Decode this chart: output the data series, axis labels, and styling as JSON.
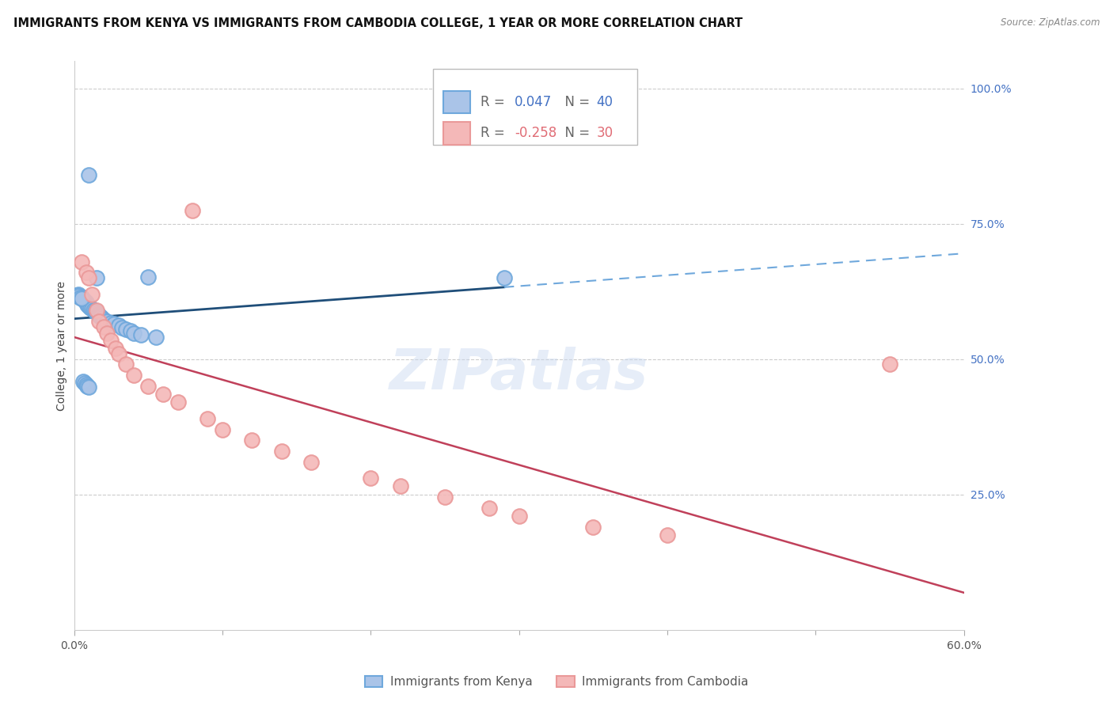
{
  "title": "IMMIGRANTS FROM KENYA VS IMMIGRANTS FROM CAMBODIA COLLEGE, 1 YEAR OR MORE CORRELATION CHART",
  "source": "Source: ZipAtlas.com",
  "ylabel": "College, 1 year or more",
  "right_yticks": [
    "100.0%",
    "75.0%",
    "50.0%",
    "25.0%"
  ],
  "right_ytick_values": [
    1.0,
    0.75,
    0.5,
    0.25
  ],
  "xlim": [
    0.0,
    0.6
  ],
  "ylim": [
    0.0,
    1.05
  ],
  "watermark": "ZIPatlas",
  "kenya_scatter_fill": "#aac4e8",
  "kenya_scatter_edge": "#6fa8dc",
  "cambodia_scatter_fill": "#f4b8b8",
  "cambodia_scatter_edge": "#ea9999",
  "kenya_R": "0.047",
  "kenya_N": "40",
  "cambodia_R": "-0.258",
  "cambodia_N": "30",
  "kenya_scatter_x": [
    0.003,
    0.005,
    0.006,
    0.007,
    0.008,
    0.009,
    0.01,
    0.01,
    0.011,
    0.012,
    0.013,
    0.014,
    0.015,
    0.015,
    0.016,
    0.017,
    0.018,
    0.019,
    0.02,
    0.022,
    0.025,
    0.027,
    0.03,
    0.032,
    0.035,
    0.038,
    0.04,
    0.045,
    0.05,
    0.055,
    0.002,
    0.003,
    0.004,
    0.005,
    0.006,
    0.007,
    0.29,
    0.008,
    0.009,
    0.01
  ],
  "kenya_scatter_y": [
    0.62,
    0.615,
    0.61,
    0.608,
    0.605,
    0.6,
    0.598,
    0.84,
    0.595,
    0.593,
    0.59,
    0.588,
    0.585,
    0.65,
    0.583,
    0.58,
    0.578,
    0.575,
    0.572,
    0.57,
    0.567,
    0.565,
    0.562,
    0.558,
    0.555,
    0.552,
    0.548,
    0.545,
    0.652,
    0.54,
    0.618,
    0.616,
    0.614,
    0.612,
    0.458,
    0.455,
    0.65,
    0.453,
    0.45,
    0.448
  ],
  "cambodia_scatter_x": [
    0.005,
    0.008,
    0.01,
    0.012,
    0.015,
    0.017,
    0.02,
    0.022,
    0.025,
    0.028,
    0.03,
    0.035,
    0.04,
    0.05,
    0.06,
    0.07,
    0.08,
    0.09,
    0.1,
    0.12,
    0.14,
    0.16,
    0.2,
    0.22,
    0.25,
    0.28,
    0.3,
    0.35,
    0.4,
    0.55
  ],
  "cambodia_scatter_y": [
    0.68,
    0.66,
    0.65,
    0.62,
    0.59,
    0.57,
    0.56,
    0.548,
    0.535,
    0.52,
    0.51,
    0.49,
    0.47,
    0.45,
    0.435,
    0.42,
    0.775,
    0.39,
    0.37,
    0.35,
    0.33,
    0.31,
    0.28,
    0.265,
    0.245,
    0.225,
    0.21,
    0.19,
    0.175,
    0.49
  ],
  "kenya_line_start_x": 0.0,
  "kenya_line_end_solid_x": 0.29,
  "kenya_line_end_x": 0.6,
  "kenya_line_color": "#1f4e79",
  "kenya_dash_color": "#6fa8dc",
  "cambodia_line_color": "#c0405a",
  "background_color": "#ffffff",
  "grid_color": "#cccccc",
  "title_fontsize": 10.5,
  "axis_label_fontsize": 10,
  "tick_fontsize": 10,
  "right_tick_color": "#4472c4",
  "legend_r_color_kenya": "#4472c4",
  "legend_n_color_kenya": "#4472c4",
  "legend_r_color_cambodia": "#e06c75",
  "legend_n_color_cambodia": "#e06c75"
}
